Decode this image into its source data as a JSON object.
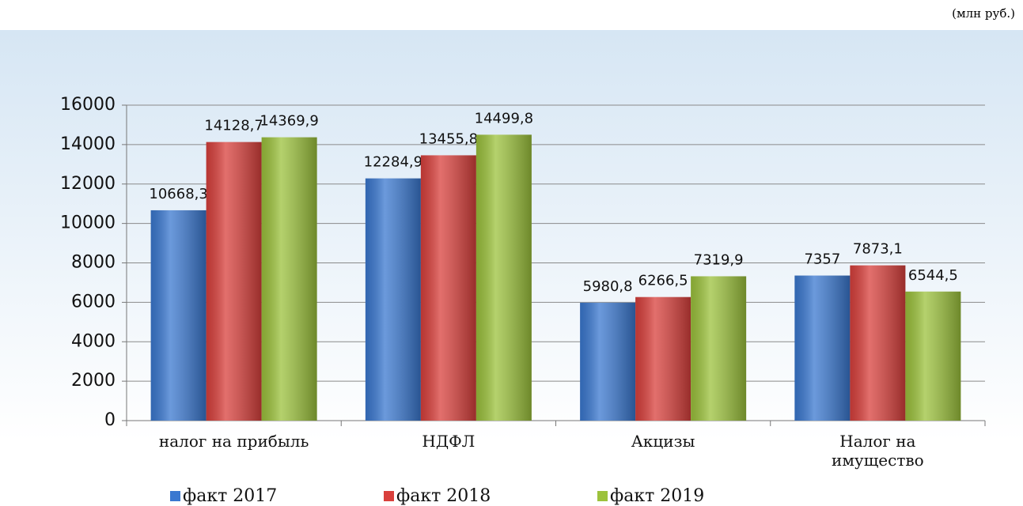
{
  "chart_data": {
    "type": "bar",
    "subtitle": "(млн руб.)",
    "categories": [
      "налог на прибыль",
      "НДФЛ",
      "Акцизы",
      "Налог на имущество"
    ],
    "series": [
      {
        "name": "факт 2017",
        "color": "#3a78d0",
        "values": [
          10668.3,
          12284.9,
          5980.8,
          7357
        ],
        "value_labels": [
          "10668,3",
          "12284,9",
          "5980,8",
          "7357"
        ]
      },
      {
        "name": "факт 2018",
        "color": "#d9403c",
        "values": [
          14128.7,
          13455.8,
          6266.5,
          7873.1
        ],
        "value_labels": [
          "14128,7",
          "13455,8",
          "6266,5",
          "7873,1"
        ]
      },
      {
        "name": "факт 2019",
        "color": "#9cc23c",
        "values": [
          14369.9,
          14499.8,
          7319.9,
          6544.5
        ],
        "value_labels": [
          "14369,9",
          "14499,8",
          "7319,9",
          "6544,5"
        ]
      }
    ],
    "ylim": [
      0,
      16000
    ],
    "yticks": [
      0,
      2000,
      4000,
      6000,
      8000,
      10000,
      12000,
      14000,
      16000
    ],
    "grid": true,
    "legend": "bottom"
  }
}
